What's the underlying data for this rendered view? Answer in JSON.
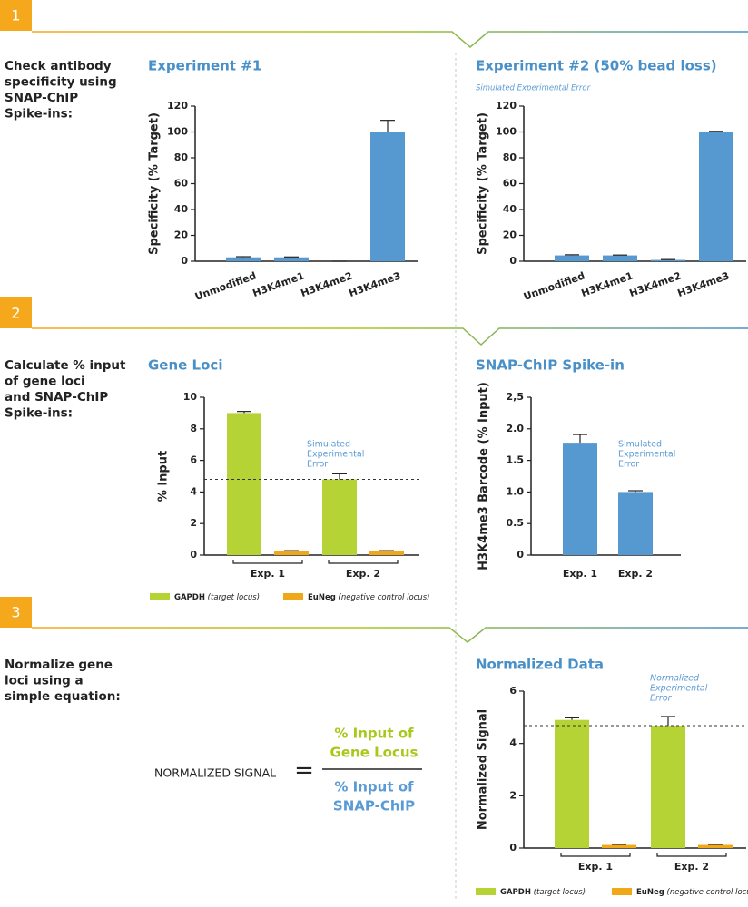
{
  "steps": [
    {
      "number": "1",
      "description": [
        "Check antibody",
        "specificity using",
        "SNAP-ChIP",
        "Spike-ins:"
      ]
    },
    {
      "number": "2",
      "description": [
        "Calculate % input",
        "of gene loci",
        "and SNAP-ChIP",
        "Spike-ins:"
      ]
    },
    {
      "number": "3",
      "description": [
        "Normalize gene",
        "loci using a",
        "simple equation:"
      ]
    }
  ],
  "equation": {
    "left": "NORMALIZED SIGNAL",
    "operator": "=",
    "numerator": [
      "% Input of",
      "Gene Locus"
    ],
    "denominator": [
      "% Input of",
      "SNAP-ChIP"
    ]
  },
  "chart_data": [
    {
      "type": "bar",
      "title": "Experiment #1",
      "y_label": "Specificity (% Target)",
      "categories": [
        "Unmodified",
        "H3K4me1",
        "H3K4me2",
        "H3K4me3"
      ],
      "values": [
        3,
        3,
        0,
        100
      ],
      "errors": [
        0.5,
        0.3,
        0,
        9
      ],
      "color": "#5599d0",
      "ylim": [
        0,
        120
      ],
      "yticks": [
        0,
        20,
        40,
        60,
        80,
        100,
        120
      ]
    },
    {
      "type": "bar",
      "title": "Experiment #2 (50% bead loss)",
      "subtitle": "Simulated Experimental Error",
      "y_label": "Specificity (% Target)",
      "categories": [
        "Unmodified",
        "H3K4me1",
        "H3K4me2",
        "H3K4me3"
      ],
      "values": [
        4.5,
        4.5,
        1,
        100
      ],
      "errors": [
        0.5,
        0.3,
        0.3,
        0.5
      ],
      "color": "#5599d0",
      "ylim": [
        0,
        120
      ],
      "yticks": [
        0,
        20,
        40,
        60,
        80,
        100,
        120
      ]
    },
    {
      "type": "grouped_bar",
      "title": "Gene Loci",
      "y_label": "% Input",
      "annotation": [
        "Simulated",
        "Experimental",
        "Error"
      ],
      "categories": [
        "Exp. 1",
        "Exp. 2"
      ],
      "series": [
        {
          "name": "GAPDH",
          "legend_note": "(target locus)",
          "color": "#b5d334",
          "values": [
            9,
            4.8
          ],
          "errors": [
            0.1,
            0.35
          ]
        },
        {
          "name": "EuNeg",
          "legend_note": "(negative control locus)",
          "color": "#f0a818",
          "values": [
            0.25,
            0.25
          ],
          "errors": [
            0.03,
            0.03
          ]
        }
      ],
      "reference_line": 4.8,
      "ylim": [
        0,
        10
      ],
      "yticks": [
        0,
        2,
        4,
        6,
        8,
        10
      ]
    },
    {
      "type": "bar",
      "title": "SNAP-ChIP Spike-in",
      "y_label": "H3K4me3 Barcode (% Input)",
      "annotation": [
        "Simulated",
        "Experimental",
        "Error"
      ],
      "categories": [
        "Exp. 1",
        "Exp. 2"
      ],
      "values": [
        1.78,
        1.0
      ],
      "errors": [
        0.13,
        0.02
      ],
      "color": "#5599d0",
      "ylim": [
        0,
        2.5
      ],
      "yticks": [
        0,
        0.5,
        {
          "value": 1,
          "label": "1.0"
        },
        1.5,
        {
          "value": 2,
          "label": "2.0"
        },
        {
          "value": 2.5,
          "label": "2,5"
        }
      ]
    },
    {
      "type": "grouped_bar",
      "title": "Normalized Data",
      "y_label": "Normalized Signal",
      "annotation": [
        "Normalized",
        "Experimental",
        "Error"
      ],
      "categories": [
        "Exp. 1",
        "Exp. 2"
      ],
      "series": [
        {
          "name": "GAPDH",
          "legend_note": "(target locus)",
          "color": "#b5d334",
          "values": [
            4.9,
            4.68
          ],
          "errors": [
            0.08,
            0.35
          ]
        },
        {
          "name": "EuNeg",
          "legend_note": "(negative control locus)",
          "color": "#f0a818",
          "values": [
            0.12,
            0.12
          ],
          "errors": [
            0.02,
            0.02
          ]
        }
      ],
      "reference_line": 4.68,
      "ylim": [
        0,
        6
      ],
      "yticks": [
        0,
        2,
        4,
        6
      ]
    }
  ]
}
